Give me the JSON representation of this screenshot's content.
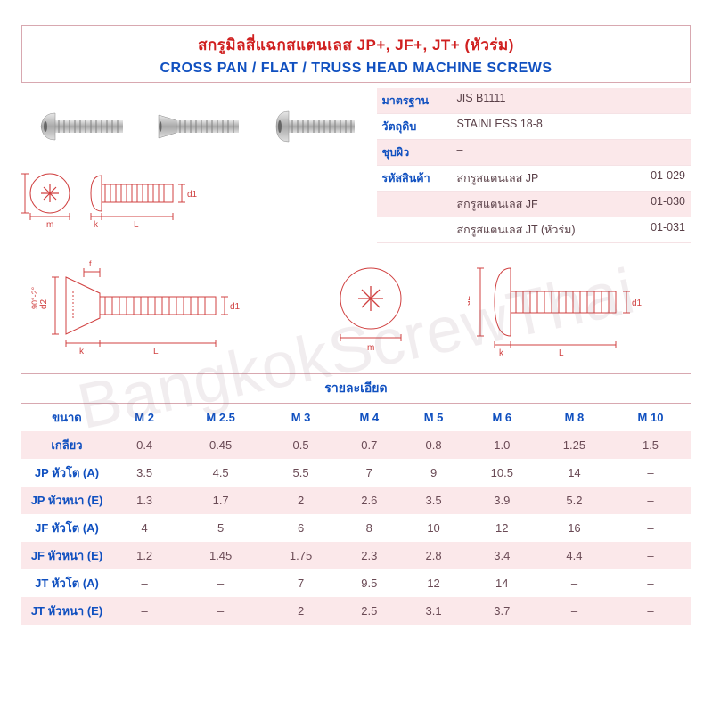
{
  "colors": {
    "red": "#d02020",
    "blue": "#1050c0",
    "pink_band": "#fbe8ea",
    "border": "#d8a8b0",
    "text": "#6a4a55",
    "diag_red": "#d04040",
    "screw_gray": "#bcbcbc",
    "screw_dark": "#909090"
  },
  "watermark": "BangkokScrewThai",
  "title_th": "สกรูมิลสี่แฉกสแตนเลส JP+, JF+, JT+ (หัวร่ม)",
  "title_en": "CROSS PAN / FLAT / TRUSS HEAD MACHINE SCREWS",
  "spec": {
    "rows": [
      {
        "label": "มาตรฐาน",
        "mid": "JIS B1111",
        "code": "",
        "alt": true
      },
      {
        "label": "วัตถุดิบ",
        "mid": "STAINLESS 18-8",
        "code": "",
        "alt": false
      },
      {
        "label": "ชุบผิว",
        "mid": "–",
        "code": "",
        "alt": true
      },
      {
        "label": "รหัสสินค้า",
        "mid": "สกรูสแตนเลส JP",
        "code": "01-029",
        "alt": false
      },
      {
        "label": "",
        "mid": "สกรูสแตนเลส JF",
        "code": "01-030",
        "alt": true
      },
      {
        "label": "",
        "mid": "สกรูสแตนเลส JT (หัวร่ม)",
        "code": "01-031",
        "alt": false
      }
    ]
  },
  "details_label": "รายละเอียด",
  "table": {
    "columns": [
      "M 2",
      "M 2.5",
      "M 3",
      "M 4",
      "M 5",
      "M 6",
      "M 8",
      "M 10"
    ],
    "rows": [
      {
        "label": "ขนาด",
        "cells": [
          "M 2",
          "M 2.5",
          "M 3",
          "M 4",
          "M 5",
          "M 6",
          "M 8",
          "M 10"
        ],
        "is_header": true,
        "alt": false
      },
      {
        "label": "เกลียว",
        "cells": [
          "0.4",
          "0.45",
          "0.5",
          "0.7",
          "0.8",
          "1.0",
          "1.25",
          "1.5"
        ],
        "alt": true
      },
      {
        "label": "JP หัวโต (A)",
        "cells": [
          "3.5",
          "4.5",
          "5.5",
          "7",
          "9",
          "10.5",
          "14",
          "–"
        ],
        "alt": false
      },
      {
        "label": "JP หัวหนา (E)",
        "cells": [
          "1.3",
          "1.7",
          "2",
          "2.6",
          "3.5",
          "3.9",
          "5.2",
          "–"
        ],
        "alt": true
      },
      {
        "label": "JF หัวโต (A)",
        "cells": [
          "4",
          "5",
          "6",
          "8",
          "10",
          "12",
          "16",
          "–"
        ],
        "alt": false
      },
      {
        "label": "JF หัวหนา (E)",
        "cells": [
          "1.2",
          "1.45",
          "1.75",
          "2.3",
          "2.8",
          "3.4",
          "4.4",
          "–"
        ],
        "alt": true
      },
      {
        "label": "JT หัวโต (A)",
        "cells": [
          "–",
          "–",
          "7",
          "9.5",
          "12",
          "14",
          "–",
          "–"
        ],
        "alt": false
      },
      {
        "label": "JT หัวหนา (E)",
        "cells": [
          "–",
          "–",
          "2",
          "2.5",
          "3.1",
          "3.7",
          "–",
          "–"
        ],
        "alt": true
      }
    ]
  },
  "diag_labels": {
    "m": "m",
    "k": "k",
    "L": "L",
    "d1": "d1",
    "d2": "d2",
    "f": "f",
    "ang": "90°-2°"
  }
}
